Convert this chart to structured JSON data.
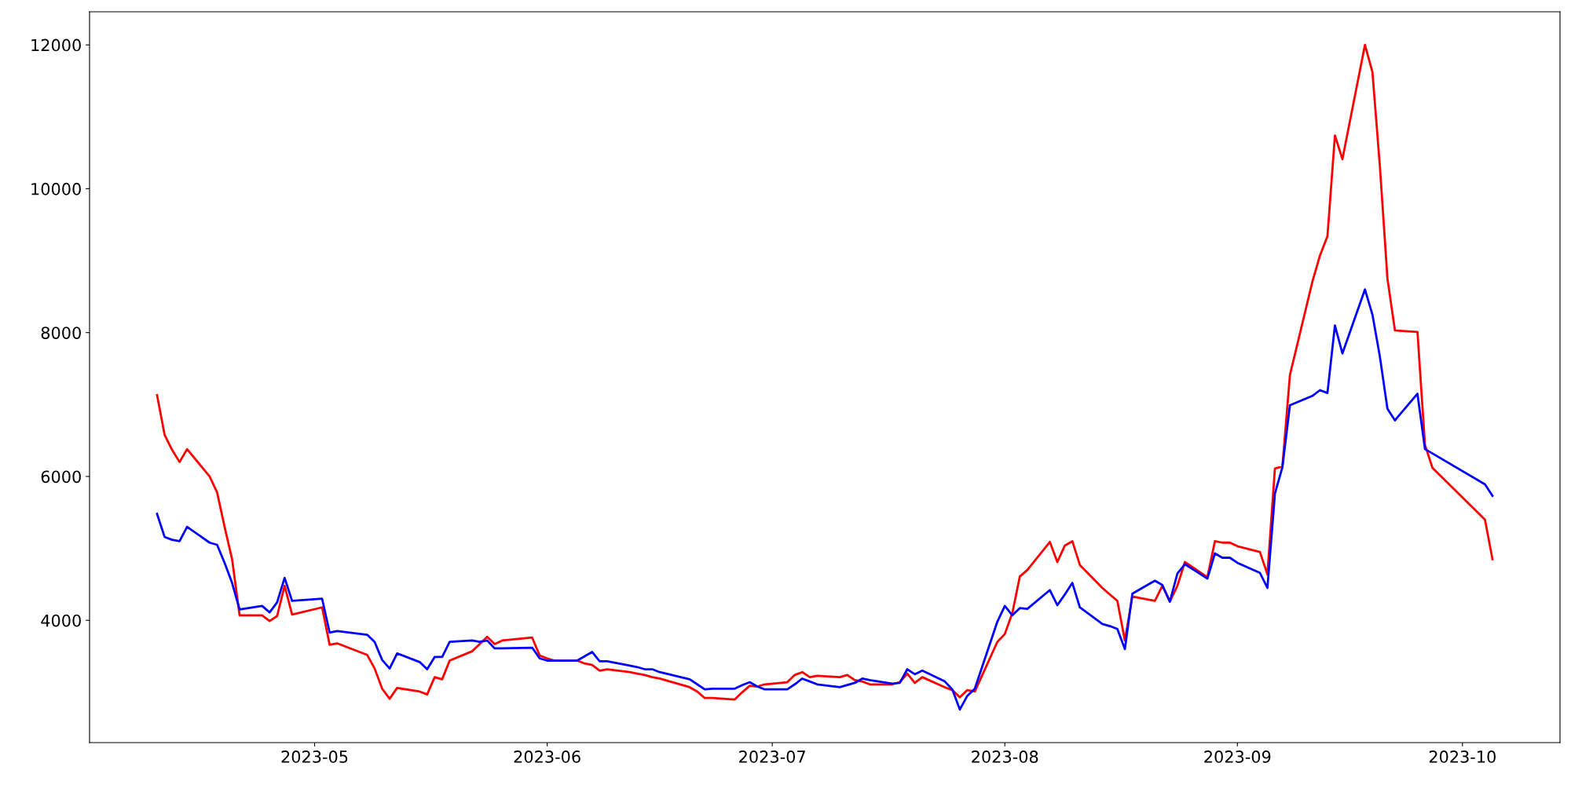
{
  "chart_data": {
    "type": "line",
    "x": [
      "2023-04-10",
      "2023-04-11",
      "2023-04-12",
      "2023-04-13",
      "2023-04-14",
      "2023-04-17",
      "2023-04-18",
      "2023-04-19",
      "2023-04-20",
      "2023-04-21",
      "2023-04-24",
      "2023-04-25",
      "2023-04-26",
      "2023-04-27",
      "2023-04-28",
      "2023-05-02",
      "2023-05-03",
      "2023-05-04",
      "2023-05-08",
      "2023-05-09",
      "2023-05-10",
      "2023-05-11",
      "2023-05-12",
      "2023-05-15",
      "2023-05-16",
      "2023-05-17",
      "2023-05-18",
      "2023-05-19",
      "2023-05-22",
      "2023-05-23",
      "2023-05-24",
      "2023-05-25",
      "2023-05-26",
      "2023-05-30",
      "2023-05-31",
      "2023-06-01",
      "2023-06-02",
      "2023-06-05",
      "2023-06-06",
      "2023-06-07",
      "2023-06-08",
      "2023-06-09",
      "2023-06-12",
      "2023-06-13",
      "2023-06-14",
      "2023-06-15",
      "2023-06-16",
      "2023-06-20",
      "2023-06-21",
      "2023-06-22",
      "2023-06-23",
      "2023-06-26",
      "2023-06-27",
      "2023-06-28",
      "2023-06-29",
      "2023-06-30",
      "2023-07-03",
      "2023-07-04",
      "2023-07-05",
      "2023-07-06",
      "2023-07-07",
      "2023-07-10",
      "2023-07-11",
      "2023-07-12",
      "2023-07-13",
      "2023-07-14",
      "2023-07-17",
      "2023-07-18",
      "2023-07-19",
      "2023-07-20",
      "2023-07-21",
      "2023-07-24",
      "2023-07-25",
      "2023-07-26",
      "2023-07-27",
      "2023-07-28",
      "2023-07-31",
      "2023-08-01",
      "2023-08-02",
      "2023-08-03",
      "2023-08-04",
      "2023-08-07",
      "2023-08-08",
      "2023-08-09",
      "2023-08-10",
      "2023-08-11",
      "2023-08-14",
      "2023-08-15",
      "2023-08-16",
      "2023-08-17",
      "2023-08-18",
      "2023-08-21",
      "2023-08-22",
      "2023-08-23",
      "2023-08-24",
      "2023-08-25",
      "2023-08-28",
      "2023-08-29",
      "2023-08-30",
      "2023-08-31",
      "2023-09-01",
      "2023-09-04",
      "2023-09-05",
      "2023-09-06",
      "2023-09-07",
      "2023-09-08",
      "2023-09-11",
      "2023-09-12",
      "2023-09-13",
      "2023-09-14",
      "2023-09-15",
      "2023-09-18",
      "2023-09-19",
      "2023-09-20",
      "2023-09-21",
      "2023-09-22",
      "2023-09-25",
      "2023-09-26",
      "2023-09-27",
      "2023-10-04",
      "2023-10-05"
    ],
    "series": [
      {
        "color": "#ff0000",
        "values": [
          7130,
          6580,
          6370,
          6200,
          6380,
          6000,
          5780,
          5300,
          4850,
          4070,
          4070,
          3990,
          4060,
          4480,
          4080,
          4180,
          3660,
          3680,
          3520,
          3330,
          3050,
          2910,
          3060,
          3010,
          2970,
          3210,
          3180,
          3440,
          3570,
          3670,
          3770,
          3670,
          3720,
          3760,
          3510,
          3470,
          3440,
          3440,
          3400,
          3380,
          3300,
          3320,
          3280,
          3260,
          3240,
          3210,
          3190,
          3070,
          3010,
          2920,
          2920,
          2900,
          3000,
          3090,
          3080,
          3110,
          3140,
          3240,
          3280,
          3210,
          3230,
          3210,
          3240,
          3170,
          3150,
          3110,
          3110,
          3140,
          3260,
          3130,
          3210,
          3070,
          3030,
          2930,
          3030,
          3010,
          3700,
          3810,
          4100,
          4610,
          4700,
          5090,
          4810,
          5040,
          5100,
          4770,
          4450,
          4360,
          4270,
          3720,
          4330,
          4270,
          4480,
          4260,
          4480,
          4810,
          4600,
          5100,
          5080,
          5080,
          5030,
          4950,
          4640,
          6110,
          6140,
          7410,
          8710,
          9070,
          9340,
          10740,
          10410,
          12000,
          11620,
          10300,
          8750,
          8030,
          8010,
          6440,
          6120,
          5400,
          4850
        ]
      },
      {
        "color": "#0000ff",
        "values": [
          5480,
          5160,
          5120,
          5100,
          5300,
          5080,
          5050,
          4800,
          4520,
          4150,
          4200,
          4110,
          4250,
          4590,
          4270,
          4300,
          3830,
          3850,
          3800,
          3700,
          3450,
          3330,
          3540,
          3420,
          3320,
          3490,
          3490,
          3700,
          3720,
          3700,
          3720,
          3610,
          3610,
          3620,
          3470,
          3440,
          3440,
          3440,
          3500,
          3560,
          3430,
          3430,
          3370,
          3350,
          3320,
          3320,
          3280,
          3180,
          3110,
          3040,
          3050,
          3050,
          3100,
          3140,
          3080,
          3040,
          3040,
          3110,
          3190,
          3150,
          3110,
          3070,
          3100,
          3130,
          3190,
          3170,
          3120,
          3130,
          3320,
          3250,
          3300,
          3150,
          3040,
          2760,
          2950,
          3050,
          3980,
          4200,
          4070,
          4170,
          4160,
          4420,
          4210,
          4360,
          4520,
          4180,
          3950,
          3920,
          3880,
          3600,
          4370,
          4550,
          4490,
          4260,
          4650,
          4780,
          4580,
          4930,
          4870,
          4870,
          4800,
          4660,
          4450,
          5760,
          6130,
          6990,
          7120,
          7200,
          7160,
          8100,
          7710,
          8600,
          8250,
          7660,
          6940,
          6780,
          7150,
          6380,
          6320,
          5890,
          5730
        ]
      }
    ],
    "xlim": [
      "2023-04-01",
      "2023-10-14"
    ],
    "xticks": [
      {
        "value": "2023-05-01",
        "label": "2023-05"
      },
      {
        "value": "2023-06-01",
        "label": "2023-06"
      },
      {
        "value": "2023-07-01",
        "label": "2023-07"
      },
      {
        "value": "2023-08-01",
        "label": "2023-08"
      },
      {
        "value": "2023-09-01",
        "label": "2023-09"
      },
      {
        "value": "2023-10-01",
        "label": "2023-10"
      }
    ],
    "ylim": [
      2300,
      12460
    ],
    "yticks": [
      4000,
      6000,
      8000,
      10000,
      12000
    ],
    "grid": false,
    "marker": "none",
    "line_style": "solid"
  }
}
